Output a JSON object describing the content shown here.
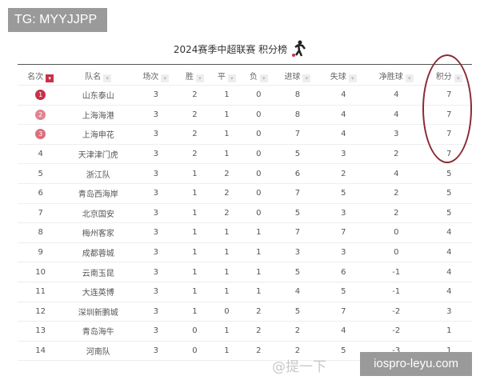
{
  "watermark_top": "TG: MYYJJPP",
  "watermark_bottom": "iospro-leyu.com",
  "watermark_source": "@提一下",
  "title": "2024赛季中超联赛 积分榜",
  "colors": {
    "accent": "#c8304a",
    "highlight_ellipse": "#8a2a35",
    "medal_1": "#c8304a",
    "medal_2": "#e0848f",
    "medal_3": "#d9707e"
  },
  "headers": [
    "名次",
    "队名",
    "场次",
    "胜",
    "平",
    "负",
    "进球",
    "失球",
    "净胜球",
    "积分"
  ],
  "rows": [
    [
      "1",
      "山东泰山",
      "3",
      "2",
      "1",
      "0",
      "8",
      "4",
      "4",
      "7"
    ],
    [
      "2",
      "上海海港",
      "3",
      "2",
      "1",
      "0",
      "8",
      "4",
      "4",
      "7"
    ],
    [
      "3",
      "上海申花",
      "3",
      "2",
      "1",
      "0",
      "7",
      "4",
      "3",
      "7"
    ],
    [
      "4",
      "天津津门虎",
      "3",
      "2",
      "1",
      "0",
      "5",
      "3",
      "2",
      "7"
    ],
    [
      "5",
      "浙江队",
      "3",
      "1",
      "2",
      "0",
      "6",
      "2",
      "4",
      "5"
    ],
    [
      "6",
      "青岛西海岸",
      "3",
      "1",
      "2",
      "0",
      "7",
      "5",
      "2",
      "5"
    ],
    [
      "7",
      "北京国安",
      "3",
      "1",
      "2",
      "0",
      "5",
      "3",
      "2",
      "5"
    ],
    [
      "8",
      "梅州客家",
      "3",
      "1",
      "1",
      "1",
      "7",
      "7",
      "0",
      "4"
    ],
    [
      "9",
      "成都蓉城",
      "3",
      "1",
      "1",
      "1",
      "3",
      "3",
      "0",
      "4"
    ],
    [
      "10",
      "云南玉昆",
      "3",
      "1",
      "1",
      "1",
      "5",
      "6",
      "-1",
      "4"
    ],
    [
      "11",
      "大连英博",
      "3",
      "1",
      "1",
      "1",
      "4",
      "5",
      "-1",
      "4"
    ],
    [
      "12",
      "深圳新鹏城",
      "3",
      "1",
      "0",
      "2",
      "5",
      "7",
      "-2",
      "3"
    ],
    [
      "13",
      "青岛海牛",
      "3",
      "0",
      "1",
      "2",
      "2",
      "4",
      "-2",
      "1"
    ],
    [
      "14",
      "河南队",
      "3",
      "0",
      "1",
      "2",
      "2",
      "5",
      "-3",
      "1"
    ]
  ]
}
